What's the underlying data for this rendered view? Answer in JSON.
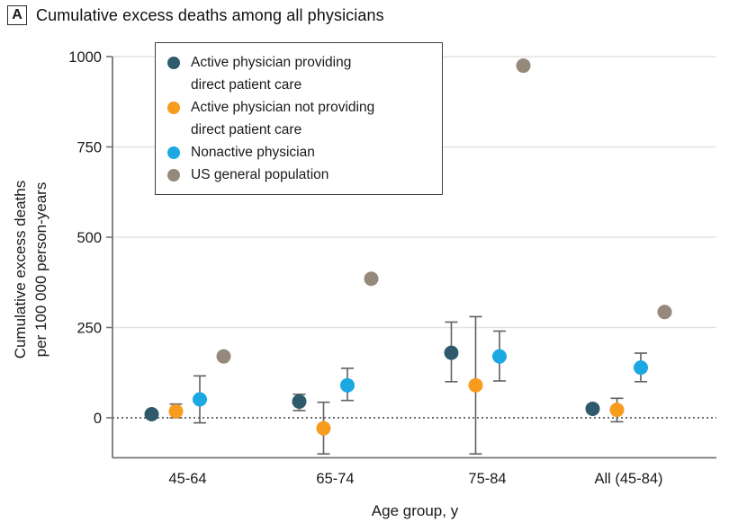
{
  "panel": {
    "label": "A",
    "title": "Cumulative excess deaths among all physicians"
  },
  "axes": {
    "y_label_line1": "Cumulative excess deaths",
    "y_label_line2": "per 100 000 person-years",
    "x_label": "Age group, y"
  },
  "legend": {
    "items": [
      "Active physician providing\ndirect patient care",
      "Active physician not providing\ndirect patient care",
      "Nonactive physician",
      "US general population"
    ]
  },
  "chart_data": {
    "type": "scatter",
    "title": "Cumulative excess deaths among all physicians",
    "xlabel": "Age group, y",
    "ylabel": "Cumulative excess deaths per 100 000 person-years",
    "categories": [
      "45-64",
      "65-74",
      "75-84",
      "All (45-84)"
    ],
    "yticks": [
      0,
      250,
      500,
      750,
      1000
    ],
    "ylim": [
      -115,
      1050
    ],
    "grid": "horizontal-light",
    "zero_line": "dotted",
    "legend_position": "top-left-inside",
    "error_bars": "95% CI where shown",
    "series": [
      {
        "name": "Active physician providing direct patient care",
        "color": "#2F5A6B",
        "values": [
          10,
          45,
          180,
          25
        ],
        "ci_low": [
          null,
          20,
          100,
          null
        ],
        "ci_high": [
          null,
          65,
          265,
          null
        ]
      },
      {
        "name": "Active physician not providing direct patient care",
        "color": "#F89C1E",
        "values": [
          18,
          -29,
          90,
          22
        ],
        "ci_low": [
          0,
          -100,
          -100,
          -11
        ],
        "ci_high": [
          38,
          43,
          280,
          54
        ]
      },
      {
        "name": "Nonactive physician",
        "color": "#1CA8E3",
        "values": [
          51,
          90,
          170,
          139
        ],
        "ci_low": [
          -14,
          48,
          102,
          100
        ],
        "ci_high": [
          116,
          137,
          240,
          179
        ]
      },
      {
        "name": "US general population",
        "color": "#94897B",
        "values": [
          170,
          385,
          975,
          293
        ],
        "ci_low": [
          null,
          null,
          null,
          null
        ],
        "ci_high": [
          null,
          null,
          null,
          null
        ]
      }
    ]
  }
}
